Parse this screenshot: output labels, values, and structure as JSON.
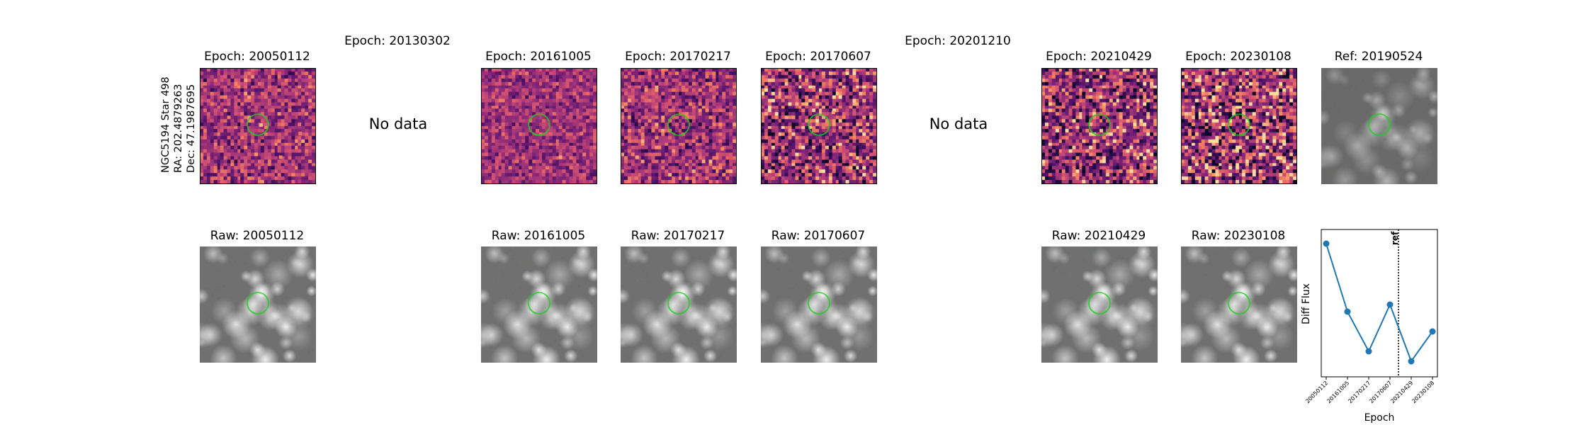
{
  "star_label": {
    "line1": "NGC5194 Star 498",
    "line2": "RA: 202.4879263",
    "line3": "Dec: 47.1987695"
  },
  "top_row": [
    {
      "title": "Epoch: 20050112",
      "has_data": true
    },
    {
      "title": "Epoch: 20130302",
      "has_data": false,
      "no_data_text": "No data"
    },
    {
      "title": "Epoch: 20161005",
      "has_data": true
    },
    {
      "title": "Epoch: 20170217",
      "has_data": true
    },
    {
      "title": "Epoch: 20170607",
      "has_data": true
    },
    {
      "title": "Epoch: 20201210",
      "has_data": false,
      "no_data_text": "No data"
    },
    {
      "title": "Epoch: 20210429",
      "has_data": true
    },
    {
      "title": "Epoch: 20230108",
      "has_data": true
    },
    {
      "title": "Ref: 20190524",
      "has_data": true
    }
  ],
  "bottom_row": [
    {
      "title": "Raw: 20050112"
    },
    {
      "title": "Raw: 20161005"
    },
    {
      "title": "Raw: 20170217"
    },
    {
      "title": "Raw: 20170607"
    },
    {
      "title": "Raw: 20210429"
    },
    {
      "title": "Raw: 20230108"
    }
  ],
  "colors": {
    "aperture": "#22cc22",
    "series": "#1f77b4",
    "raw_background": "#6e6e6e"
  },
  "chart_data": {
    "type": "line",
    "xlabel": "Epoch",
    "ylabel": "Diff Flux",
    "categories": [
      "20050112",
      "20161005",
      "20170217",
      "20170607",
      "20210429",
      "20230108"
    ],
    "values": [
      1.0,
      0.52,
      0.24,
      0.57,
      0.17,
      0.38
    ],
    "ref_line": {
      "label": "ref",
      "position_between": [
        "20170607",
        "20210429"
      ]
    },
    "ylim": [
      0.06,
      1.1
    ],
    "grid": false
  }
}
